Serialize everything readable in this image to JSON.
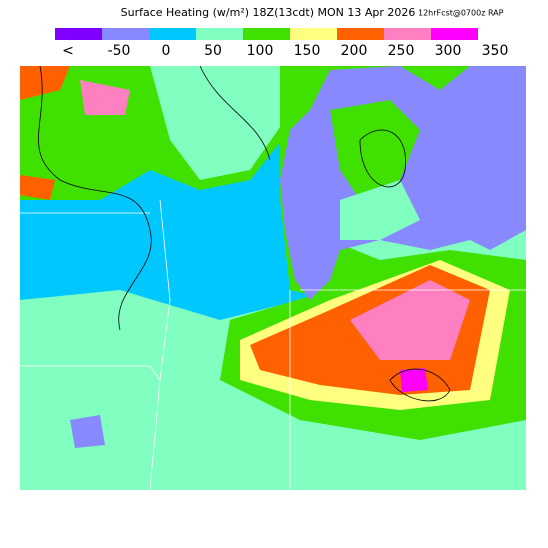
{
  "header": {
    "title": "Surface Heating (w/m²) 18Z(13cdt) MON 13 Apr 2026",
    "run": "12hrFcst@0700z RAP"
  },
  "legend": {
    "colors": [
      "#8000ff",
      "#8888ff",
      "#00c8ff",
      "#80ffc0",
      "#40e000",
      "#ffff80",
      "#ff6000",
      "#ff80c0",
      "#ff00ff"
    ],
    "labels": [
      "<",
      "-50",
      "0",
      "50",
      "100",
      "150",
      "200",
      "250",
      "300",
      "350"
    ]
  }
}
